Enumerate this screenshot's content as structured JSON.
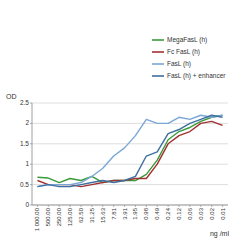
{
  "chart_data": {
    "type": "line",
    "y_label": "OD",
    "x_label": "ng /ml",
    "categories": [
      "1 000.00",
      "500.00",
      "250.00",
      "125.00",
      "62.50",
      "31.25",
      "15.63",
      "7.81",
      "3.91",
      "1.95",
      "0.98",
      "0.49",
      "0.24",
      "0.12",
      "0.06",
      "0.03",
      "0.02",
      "0.01"
    ],
    "series": [
      {
        "name": "MegaFasL (h)",
        "color": "#3a9a3a",
        "values": [
          0.68,
          0.66,
          0.55,
          0.65,
          0.6,
          0.7,
          0.55,
          0.6,
          0.6,
          0.6,
          0.75,
          1.1,
          1.6,
          1.8,
          1.9,
          2.05,
          2.15,
          2.2
        ]
      },
      {
        "name": "Fc FasL (h)",
        "color": "#a33030",
        "values": [
          0.6,
          0.5,
          0.5,
          0.5,
          0.45,
          0.5,
          0.55,
          0.6,
          0.6,
          0.65,
          0.65,
          1.0,
          1.5,
          1.7,
          1.8,
          2.0,
          2.05,
          1.95
        ]
      },
      {
        "name": "FasL (h)",
        "color": "#7aa6d8",
        "values": [
          0.45,
          0.5,
          0.5,
          0.5,
          0.55,
          0.7,
          0.9,
          1.2,
          1.4,
          1.7,
          2.1,
          2.0,
          2.0,
          2.15,
          2.1,
          2.2,
          2.15,
          2.2
        ]
      },
      {
        "name": "FasL (h) + enhancer",
        "color": "#3d6fa0",
        "values": [
          0.45,
          0.5,
          0.45,
          0.45,
          0.5,
          0.55,
          0.6,
          0.55,
          0.6,
          0.7,
          1.2,
          1.3,
          1.75,
          1.85,
          2.0,
          2.1,
          2.2,
          2.15
        ]
      }
    ],
    "ylim": [
      0,
      2.5
    ],
    "yticks": [
      0,
      0.5,
      1,
      1.5,
      2,
      2.5
    ],
    "grid": true,
    "legend": "top-right"
  }
}
